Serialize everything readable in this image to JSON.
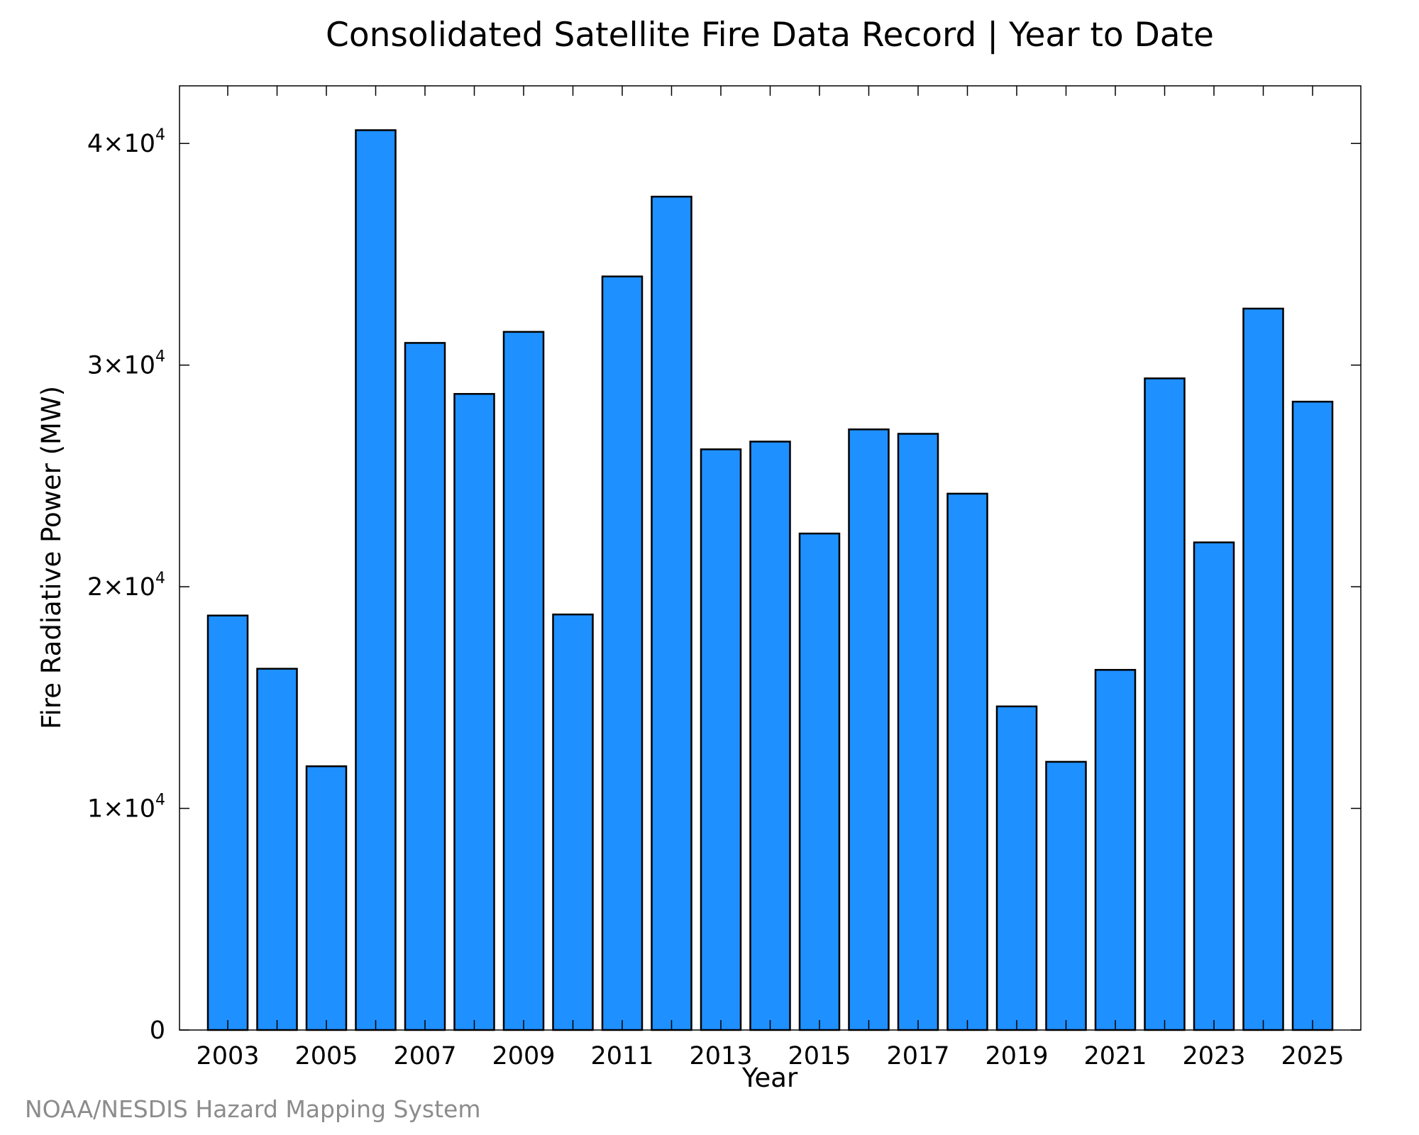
{
  "chart_data": {
    "type": "bar",
    "title": "Consolidated Satellite Fire Data Record | Year to Date",
    "xlabel": "Year",
    "ylabel": "Fire Radiative Power (MW)",
    "categories": [
      "2003",
      "2004",
      "2005",
      "2006",
      "2007",
      "2008",
      "2009",
      "2010",
      "2011",
      "2012",
      "2013",
      "2014",
      "2015",
      "2016",
      "2017",
      "2018",
      "2019",
      "2020",
      "2021",
      "2022",
      "2023",
      "2024",
      "2025"
    ],
    "values": [
      18700,
      16300,
      11900,
      40600,
      31000,
      28700,
      31500,
      18750,
      34000,
      37600,
      26200,
      26550,
      22400,
      27100,
      26900,
      24200,
      14600,
      12100,
      16250,
      29400,
      22000,
      32550,
      28350
    ],
    "ylim": [
      0,
      42600
    ],
    "yticks": [
      {
        "value": 0,
        "label": "0"
      },
      {
        "value": 10000,
        "mant": "1×10",
        "exp": "4"
      },
      {
        "value": 20000,
        "mant": "2×10",
        "exp": "4"
      },
      {
        "value": 30000,
        "mant": "3×10",
        "exp": "4"
      },
      {
        "value": 40000,
        "mant": "4×10",
        "exp": "4"
      }
    ],
    "xtick_labels": [
      "2003",
      "2005",
      "2007",
      "2009",
      "2011",
      "2013",
      "2015",
      "2017",
      "2019",
      "2021",
      "2023",
      "2025"
    ],
    "bar_color": "#1e90ff",
    "bar_edge_color": "#000000",
    "grid": false,
    "credit": "NOAA/NESDIS Hazard Mapping System"
  }
}
